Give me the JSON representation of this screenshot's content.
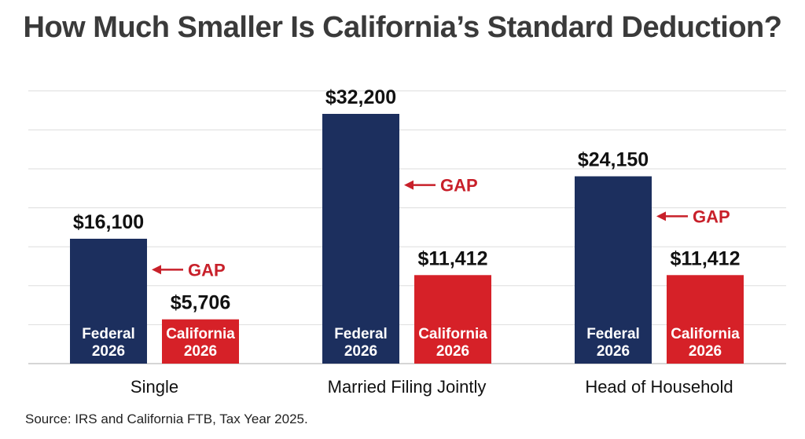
{
  "chart_data": {
    "type": "bar",
    "title": "How Much Smaller Is California’s Standard Deduction?",
    "categories": [
      "Single",
      "Married Filing Jointly",
      "Head of Household"
    ],
    "series": [
      {
        "name": "Federal 2026",
        "label_lines": [
          "Federal",
          "2026"
        ],
        "color": "#1c2f5e",
        "values": [
          16100,
          32200,
          24150
        ],
        "value_labels": [
          "$16,100",
          "$32,200",
          "$24,150"
        ]
      },
      {
        "name": "California 2026",
        "label_lines": [
          "California",
          "2026"
        ],
        "color": "#d62128",
        "values": [
          5706,
          11412,
          11412
        ],
        "value_labels": [
          "$5,706",
          "$11,412",
          "$11,412"
        ]
      }
    ],
    "annotation": {
      "text": "GAP",
      "color": "#c8202a"
    },
    "xlabel": "",
    "ylabel": "",
    "ylim": [
      0,
      38000
    ],
    "grid": true,
    "legend": "none"
  },
  "source": "Source: IRS and California FTB, Tax Year 2025."
}
